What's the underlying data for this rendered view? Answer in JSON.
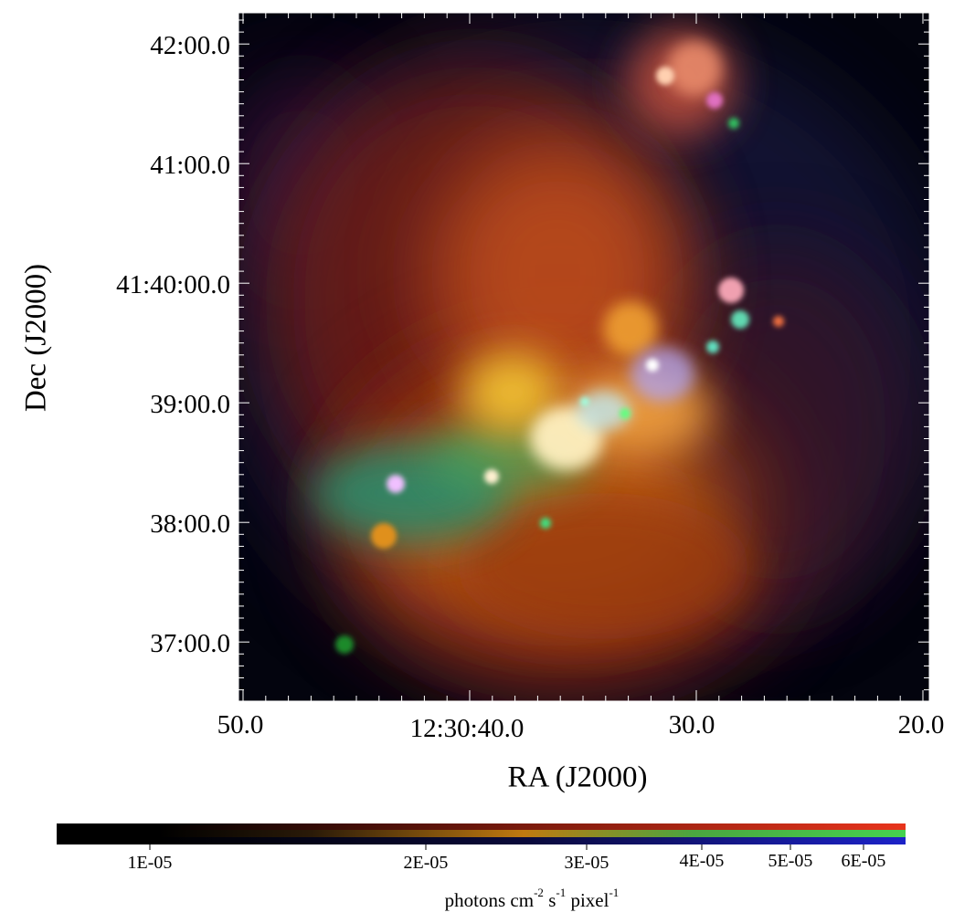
{
  "figure": {
    "y_axis_title": "Dec (J2000)",
    "x_axis_title": "RA (J2000)",
    "y_ticks": [
      "42:00.0",
      "41:00.0",
      "41:40:00.0",
      "39:00.0",
      "38:00.0",
      "37:00.0"
    ],
    "x_ticks": [
      "50.0",
      "12:30:40.0",
      "30.0",
      "20.0"
    ]
  },
  "colorbar": {
    "labels": [
      "1E-05",
      "2E-05",
      "3E-05",
      "4E-05",
      "5E-05",
      "6E-05"
    ],
    "title_parts": {
      "photons": "photons cm",
      "exp1": "-2",
      "s": " s",
      "exp2": "-1",
      "pixel": " pixel",
      "exp3": "-1"
    },
    "colors": {
      "red": "#e02a14",
      "green": "#3ec24a",
      "blue": "#1c22c8"
    }
  },
  "image": {
    "description_colors": [
      "#000000",
      "#c23a1a",
      "#f0b030",
      "#50d090",
      "#b0b0ff"
    ]
  }
}
